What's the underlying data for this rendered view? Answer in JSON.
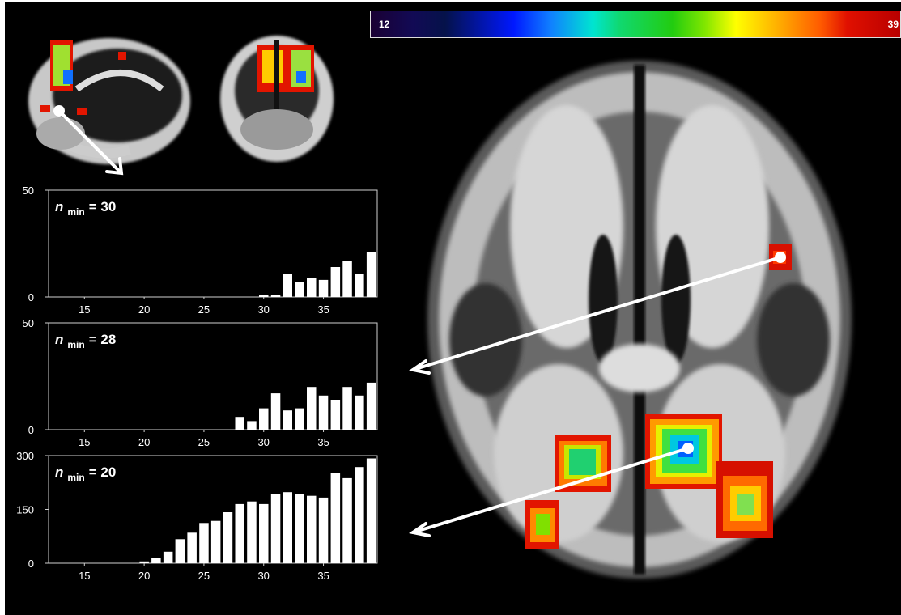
{
  "colorbar": {
    "min_label": "12",
    "max_label": "39",
    "colors": [
      "#1a0033",
      "#0018ff",
      "#00e5d0",
      "#22cc10",
      "#ffff00",
      "#ff5a00",
      "#b80000"
    ]
  },
  "chart_data": [
    {
      "type": "bar",
      "label_var": "n",
      "label_sub": "min",
      "label_value": "= 30",
      "x": [
        29,
        30,
        31,
        32,
        33,
        34,
        35,
        36,
        37,
        38,
        39
      ],
      "values": [
        0,
        1,
        1,
        11,
        7,
        9,
        8,
        14,
        17,
        11,
        21
      ],
      "xlim": [
        12,
        39.5
      ],
      "xticks": [
        "15",
        "20",
        "25",
        "30",
        "35"
      ],
      "ylim": [
        0,
        50
      ],
      "yticks": [
        "0",
        "50"
      ]
    },
    {
      "type": "bar",
      "label_var": "n",
      "label_sub": "min",
      "label_value": "= 28",
      "x": [
        28,
        29,
        30,
        31,
        32,
        33,
        34,
        35,
        36,
        37,
        38,
        39
      ],
      "values": [
        6,
        4,
        10,
        17,
        9,
        10,
        20,
        16,
        14,
        20,
        16,
        22
      ],
      "xlim": [
        12,
        39.5
      ],
      "xticks": [
        "15",
        "20",
        "25",
        "30",
        "35"
      ],
      "ylim": [
        0,
        50
      ],
      "yticks": [
        "0",
        "50"
      ]
    },
    {
      "type": "bar",
      "label_var": "n",
      "label_sub": "min",
      "label_value": "= 20",
      "x": [
        20,
        21,
        22,
        23,
        24,
        25,
        26,
        27,
        28,
        29,
        30,
        31,
        32,
        33,
        34,
        35,
        36,
        37,
        38,
        39
      ],
      "values": [
        5,
        15,
        32,
        67,
        85,
        112,
        118,
        142,
        165,
        172,
        165,
        193,
        198,
        193,
        188,
        183,
        252,
        237,
        268,
        292
      ],
      "xlim": [
        12,
        39.5
      ],
      "xticks": [
        "15",
        "20",
        "25",
        "30",
        "35"
      ],
      "ylim": [
        0,
        300
      ],
      "yticks": [
        "0",
        "150",
        "300"
      ]
    }
  ]
}
